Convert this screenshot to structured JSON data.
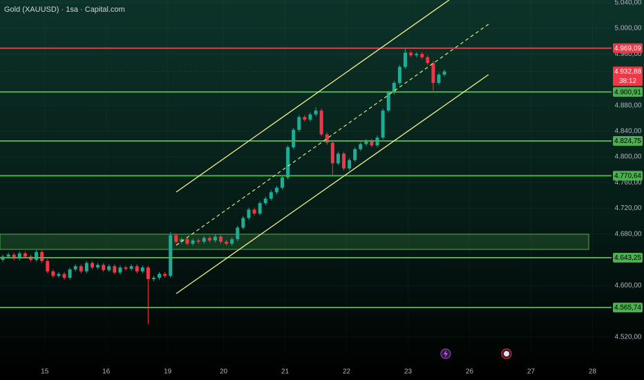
{
  "chart_data": {
    "type": "candlestick",
    "title": "Gold (XAUUSD) · 1sa · Capital.com",
    "up_color": "#22ab94",
    "down_color": "#f23645",
    "open": [
      4640,
      4645,
      4648,
      4642,
      4650,
      4645,
      4640,
      4652,
      4638,
      4622,
      4615,
      4618,
      4612,
      4625,
      4630,
      4622,
      4635,
      4628,
      4632,
      4624,
      4630,
      4620,
      4628,
      4626,
      4630,
      4622,
      4628,
      4610,
      4612,
      4618,
      4615,
      4678,
      4668,
      4672,
      4665,
      4670,
      4668,
      4674,
      4670,
      4676,
      4668,
      4665,
      4672,
      4690,
      4705,
      4718,
      4712,
      4728,
      4735,
      4745,
      4752,
      4768,
      4815,
      4842,
      4862,
      4858,
      4866,
      4872,
      4835,
      4822,
      4790,
      4805,
      4782,
      4795,
      4812,
      4820,
      4825,
      4818,
      4830,
      4872,
      4900,
      4915,
      4940,
      4962,
      4958,
      4960,
      4955,
      4946,
      4915,
      4928
    ],
    "high": [
      4648,
      4651,
      4651,
      4653,
      4653,
      4648,
      4655,
      4655,
      4641,
      4625,
      4621,
      4621,
      4628,
      4633,
      4633,
      4638,
      4638,
      4635,
      4635,
      4633,
      4633,
      4631,
      4631,
      4633,
      4633,
      4631,
      4631,
      4615,
      4621,
      4621,
      4683,
      4681,
      4675,
      4675,
      4673,
      4673,
      4677,
      4677,
      4679,
      4679,
      4671,
      4675,
      4693,
      4708,
      4721,
      4721,
      4731,
      4738,
      4748,
      4755,
      4771,
      4818,
      4845,
      4865,
      4865,
      4869,
      4877,
      4875,
      4838,
      4825,
      4808,
      4808,
      4798,
      4815,
      4823,
      4828,
      4828,
      4833,
      4875,
      4903,
      4918,
      4943,
      4968,
      4965,
      4963,
      4963,
      4958,
      4949,
      4931,
      4936
    ],
    "low": [
      4637,
      4642,
      4639,
      4639,
      4642,
      4637,
      4637,
      4635,
      4619,
      4612,
      4612,
      4609,
      4609,
      4622,
      4619,
      4619,
      4625,
      4625,
      4621,
      4621,
      4617,
      4617,
      4623,
      4623,
      4619,
      4619,
      4540,
      4607,
      4609,
      4612,
      4612,
      4665,
      4665,
      4662,
      4662,
      4665,
      4665,
      4667,
      4667,
      4665,
      4662,
      4662,
      4669,
      4687,
      4702,
      4709,
      4709,
      4725,
      4732,
      4742,
      4749,
      4765,
      4812,
      4839,
      4855,
      4855,
      4863,
      4832,
      4819,
      4772,
      4787,
      4779,
      4779,
      4792,
      4809,
      4817,
      4815,
      4815,
      4827,
      4869,
      4897,
      4912,
      4937,
      4955,
      4955,
      4952,
      4943,
      4903,
      4912,
      4925
    ],
    "close": [
      4645,
      4648,
      4642,
      4650,
      4645,
      4640,
      4652,
      4638,
      4622,
      4615,
      4618,
      4612,
      4625,
      4630,
      4622,
      4635,
      4628,
      4632,
      4624,
      4630,
      4620,
      4628,
      4626,
      4630,
      4622,
      4628,
      4610,
      4612,
      4618,
      4615,
      4678,
      4668,
      4672,
      4665,
      4670,
      4668,
      4674,
      4670,
      4676,
      4668,
      4665,
      4672,
      4690,
      4705,
      4718,
      4712,
      4728,
      4735,
      4745,
      4752,
      4768,
      4815,
      4842,
      4862,
      4858,
      4866,
      4872,
      4835,
      4822,
      4790,
      4805,
      4782,
      4795,
      4812,
      4820,
      4825,
      4818,
      4830,
      4872,
      4900,
      4915,
      4940,
      4962,
      4958,
      4960,
      4955,
      4946,
      4915,
      4928,
      4932.88
    ],
    "xlim": [
      -0.5,
      108.9
    ],
    "xticks": [
      {
        "value": 7.5,
        "label": "15"
      },
      {
        "value": 18.5,
        "label": "16"
      },
      {
        "value": 29.5,
        "label": "19"
      },
      {
        "value": 39.5,
        "label": "20"
      },
      {
        "value": 50.5,
        "label": "21"
      },
      {
        "value": 61.5,
        "label": "22"
      },
      {
        "value": 72.5,
        "label": "23"
      },
      {
        "value": 83.5,
        "label": "26"
      },
      {
        "value": 94.5,
        "label": "27"
      },
      {
        "value": 105.5,
        "label": "28"
      }
    ],
    "ylim": [
      4496,
      5044
    ],
    "yticks": [
      {
        "value": 4520,
        "label": "4.520,00"
      },
      {
        "value": 4600,
        "label": "4.600,00"
      },
      {
        "value": 4680,
        "label": "4.680,00"
      },
      {
        "value": 4720,
        "label": "4.720,00"
      },
      {
        "value": 4760,
        "label": "4.760,00"
      },
      {
        "value": 4800,
        "label": "4.800,00"
      },
      {
        "value": 4840,
        "label": "4.840,00"
      },
      {
        "value": 4880,
        "label": "4.880,00"
      },
      {
        "value": 4960,
        "label": "4.960,00"
      },
      {
        "value": 5000,
        "label": "5.000,00"
      },
      {
        "value": 5040,
        "label": "5.040,00"
      }
    ],
    "levels": [
      {
        "value": 4969.09,
        "label": "4.969,09",
        "color": "#f23645"
      },
      {
        "value": 4900.91,
        "label": "4.900,91",
        "color": "#4caf50"
      },
      {
        "value": 4824.75,
        "label": "4.824,75",
        "color": "#4caf50"
      },
      {
        "value": 4770.64,
        "label": "4.770,64",
        "color": "#4caf50"
      },
      {
        "value": 4643.25,
        "label": "4.643,25",
        "color": "#4caf50"
      },
      {
        "value": 4565.74,
        "label": "4.565,74",
        "color": "#4caf50"
      }
    ],
    "last_price": {
      "value": 4932.88,
      "label": "4.932,88",
      "countdown": "38:12",
      "color": "#f23645"
    }
  }
}
